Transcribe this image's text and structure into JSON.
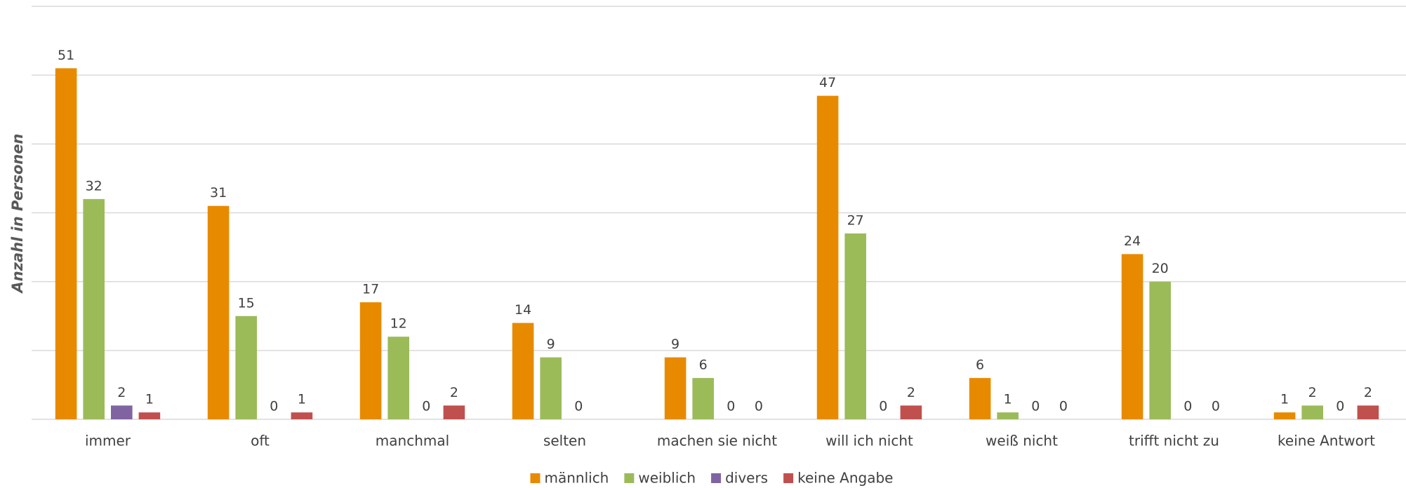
{
  "chart_data": {
    "type": "bar",
    "y_label": "Anzahl in Personen",
    "categories": [
      "immer",
      "oft",
      "manchmal",
      "selten",
      "machen sie nicht",
      "will ich nicht",
      "weiß nicht",
      "trifft nicht zu",
      "keine Antwort"
    ],
    "series": [
      {
        "name": "männlich",
        "color": "#E88A00",
        "values": [
          51,
          31,
          17,
          14,
          9,
          47,
          6,
          24,
          1
        ]
      },
      {
        "name": "weiblich",
        "color": "#9BBB59",
        "values": [
          32,
          15,
          12,
          9,
          6,
          27,
          1,
          20,
          2
        ]
      },
      {
        "name": "divers",
        "color": "#8064A2",
        "values": [
          2,
          0,
          0,
          0,
          0,
          0,
          0,
          0,
          0
        ]
      },
      {
        "name": "keine Angabe",
        "color": "#C0504D",
        "values": [
          1,
          1,
          2,
          null,
          0,
          2,
          0,
          0,
          2
        ]
      }
    ],
    "ylim": [
      0,
      60
    ],
    "yticks": [
      0,
      10,
      20,
      30,
      40,
      50,
      60
    ],
    "grid": true,
    "legend": "bottom"
  }
}
